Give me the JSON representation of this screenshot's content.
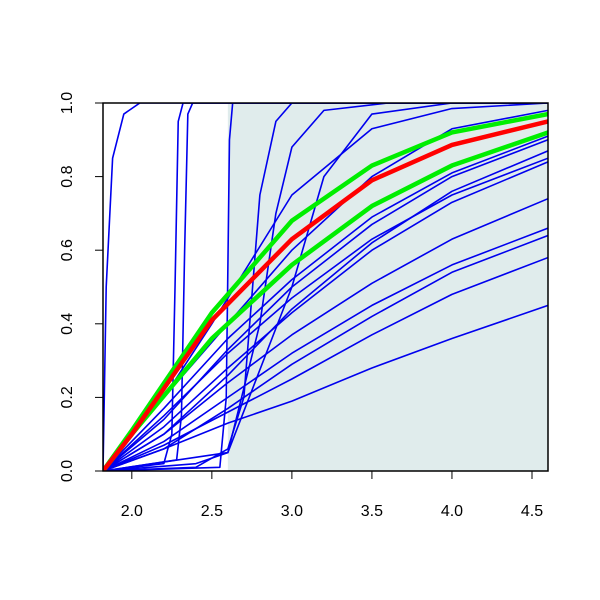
{
  "chart_data": {
    "type": "line",
    "xlim": [
      1.82,
      4.6
    ],
    "ylim": [
      0,
      1
    ],
    "xticks": [
      {
        "value": 2,
        "label": "2.0"
      },
      2.5,
      {
        "value": 3,
        "label": "3.0"
      },
      3.5,
      {
        "value": 4,
        "label": "4.0"
      },
      4.5
    ],
    "yticks": [
      {
        "value": 0,
        "label": "0.0"
      },
      0.2,
      0.4,
      0.6,
      0.8,
      {
        "value": 1,
        "label": "1.0"
      }
    ],
    "shade": {
      "x": [
        2.6,
        4.6
      ],
      "color": "#e0ecec"
    },
    "series": [
      {
        "color": "#0000ee",
        "x": [
          1.82,
          1.84,
          1.88,
          1.95,
          2.05,
          4.6
        ],
        "values": [
          0,
          0.5,
          0.85,
          0.97,
          1,
          1
        ]
      },
      {
        "color": "#0000ee",
        "x": [
          1.82,
          2.2,
          2.25,
          2.27,
          2.29,
          2.32,
          4.6
        ],
        "values": [
          0,
          0.02,
          0.1,
          0.5,
          0.95,
          1,
          1
        ]
      },
      {
        "color": "#0000ee",
        "x": [
          1.82,
          2.28,
          2.31,
          2.33,
          2.35,
          2.38,
          4.6
        ],
        "values": [
          0,
          0.03,
          0.15,
          0.6,
          0.97,
          1,
          1
        ]
      },
      {
        "color": "#0000ee",
        "x": [
          1.82,
          2.55,
          2.59,
          2.61,
          2.63,
          4.6
        ],
        "values": [
          0,
          0.01,
          0.2,
          0.9,
          1,
          1
        ]
      },
      {
        "color": "#0000ee",
        "x": [
          1.82,
          2.4,
          2.6,
          2.7,
          2.8,
          2.9,
          3.0,
          4.6
        ],
        "values": [
          0,
          0.01,
          0.06,
          0.2,
          0.75,
          0.95,
          1,
          1
        ]
      },
      {
        "color": "#0000ee",
        "x": [
          1.82,
          2.4,
          2.6,
          2.8,
          2.9,
          3.0,
          3.2,
          3.6,
          4.6
        ],
        "values": [
          0,
          0.02,
          0.05,
          0.4,
          0.7,
          0.88,
          0.98,
          1,
          1
        ]
      },
      {
        "color": "#0000ee",
        "x": [
          1.82,
          2.6,
          3.0,
          3.2,
          3.5,
          4.0,
          4.6
        ],
        "values": [
          0,
          0.05,
          0.5,
          0.8,
          0.97,
          1,
          1
        ]
      },
      {
        "color": "#0000ee",
        "x": [
          1.82,
          2.2,
          2.5,
          3.0,
          3.5,
          4.0,
          4.6
        ],
        "values": [
          0,
          0.2,
          0.4,
          0.75,
          0.93,
          0.985,
          1
        ]
      },
      {
        "color": "#0000ee",
        "x": [
          1.82,
          2.0,
          2.5,
          3.0,
          3.5,
          4.0,
          4.6
        ],
        "values": [
          0,
          0.1,
          0.35,
          0.6,
          0.8,
          0.93,
          0.98
        ]
      },
      {
        "color": "#0000ee",
        "x": [
          1.82,
          2.2,
          2.6,
          3.0,
          3.5,
          4.0,
          4.6
        ],
        "values": [
          0,
          0.06,
          0.13,
          0.19,
          0.28,
          0.36,
          0.45
        ]
      },
      {
        "color": "#0000ee",
        "x": [
          1.82,
          2.2,
          2.6,
          3.0,
          3.5,
          4.0,
          4.6
        ],
        "values": [
          0,
          0.07,
          0.16,
          0.25,
          0.37,
          0.48,
          0.58
        ]
      },
      {
        "color": "#0000ee",
        "x": [
          1.82,
          2.2,
          2.6,
          3.0,
          3.5,
          4.0,
          4.6
        ],
        "values": [
          0,
          0.06,
          0.17,
          0.29,
          0.42,
          0.54,
          0.64
        ]
      },
      {
        "color": "#0000ee",
        "x": [
          1.82,
          2.2,
          2.6,
          3.0,
          3.5,
          4.0,
          4.6
        ],
        "values": [
          0,
          0.08,
          0.2,
          0.32,
          0.45,
          0.56,
          0.66
        ]
      },
      {
        "color": "#0000ee",
        "x": [
          1.82,
          2.2,
          2.6,
          3.0,
          3.5,
          4.0,
          4.6
        ],
        "values": [
          0,
          0.1,
          0.24,
          0.37,
          0.51,
          0.63,
          0.74
        ]
      },
      {
        "color": "#0000ee",
        "x": [
          1.82,
          2.2,
          2.6,
          3.0,
          3.5,
          4.0,
          4.6
        ],
        "values": [
          0,
          0.12,
          0.28,
          0.43,
          0.6,
          0.73,
          0.84
        ]
      },
      {
        "color": "#0000ee",
        "x": [
          1.82,
          2.2,
          2.6,
          3.0,
          3.5,
          4.0,
          4.6
        ],
        "values": [
          0,
          0.15,
          0.32,
          0.47,
          0.63,
          0.75,
          0.85
        ]
      },
      {
        "color": "#0000ee",
        "x": [
          1.82,
          2.2,
          2.6,
          3.0,
          3.5,
          4.0,
          4.6
        ],
        "values": [
          0,
          0.1,
          0.26,
          0.44,
          0.62,
          0.76,
          0.87
        ]
      },
      {
        "color": "#0000ee",
        "x": [
          1.82,
          2.2,
          2.6,
          3.0,
          3.5,
          4.0,
          4.6
        ],
        "values": [
          0,
          0.14,
          0.33,
          0.5,
          0.67,
          0.8,
          0.9
        ]
      },
      {
        "color": "#0000ee",
        "x": [
          1.82,
          2.2,
          2.6,
          3.0,
          3.5,
          4.0,
          4.6
        ],
        "values": [
          0,
          0.17,
          0.36,
          0.52,
          0.69,
          0.81,
          0.91
        ]
      },
      {
        "color": "#00ee00",
        "width": 4.5,
        "x": [
          1.82,
          2.0,
          2.5,
          3.0,
          3.5,
          4.0,
          4.6
        ],
        "values": [
          0,
          0.11,
          0.43,
          0.68,
          0.83,
          0.92,
          0.97
        ]
      },
      {
        "color": "#00ee00",
        "width": 4.5,
        "x": [
          1.82,
          2.0,
          2.5,
          3.0,
          3.5,
          4.0,
          4.6
        ],
        "values": [
          0,
          0.1,
          0.36,
          0.56,
          0.72,
          0.83,
          0.92
        ]
      },
      {
        "color": "#ff0000",
        "width": 4.5,
        "x": [
          1.82,
          2.0,
          2.5,
          3.0,
          3.5,
          4.0,
          4.6
        ],
        "values": [
          0,
          0.1,
          0.41,
          0.63,
          0.79,
          0.886,
          0.95
        ]
      }
    ]
  }
}
